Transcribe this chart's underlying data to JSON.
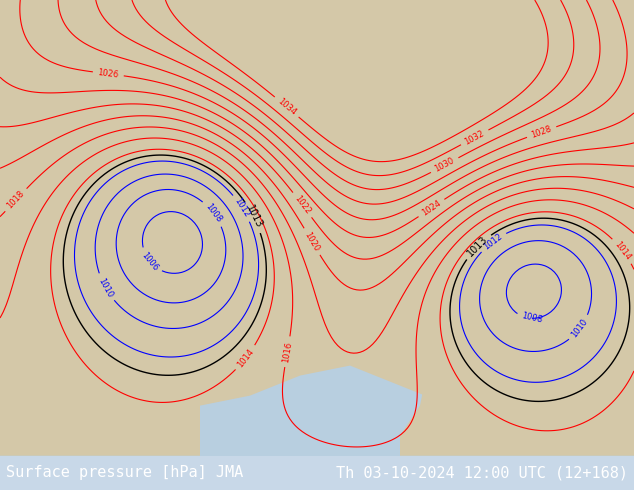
{
  "title_left": "Surface pressure [hPa] JMA",
  "title_right": "Th 03-10-2024 12:00 UTC (12+168)",
  "title_fontsize": 11,
  "bg_color": "#f5e8d0",
  "land_color": "#e8dcc8",
  "ocean_color": "#c8dce8",
  "fig_width": 6.34,
  "fig_height": 4.9,
  "dpi": 100,
  "bottom_bar_color": "#000000",
  "bottom_text_color": "#000000"
}
